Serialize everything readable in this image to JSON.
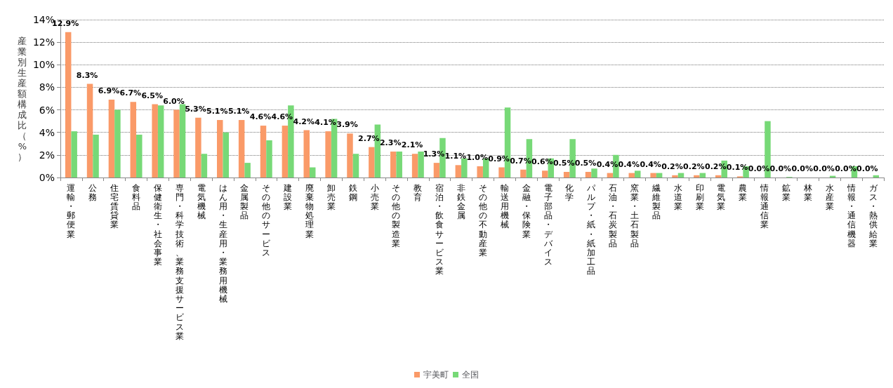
{
  "chart_data": {
    "type": "bar",
    "ylabel": "産業別生産額構成比（%）",
    "categories": [
      "運輸・郵便業",
      "公務",
      "住宅賃貸業",
      "食料品",
      "保健衛生・社会事業",
      "専門・科学技術、業務支援サービス業",
      "電気機械",
      "はん用・生産用・業務用機械",
      "金属製品",
      "その他のサービス",
      "建設業",
      "廃棄物処理業",
      "卸売業",
      "鉄鋼",
      "小売業",
      "その他の製造業",
      "教育",
      "宿泊・飲食サービス業",
      "非鉄金属",
      "その他の不動産業",
      "輸送用機械",
      "金融・保険業",
      "電子部品・デバイス",
      "化学",
      "パルプ・紙・紙加工品",
      "石油・石炭製品",
      "窯業・土石製品",
      "繊維製品",
      "水道業",
      "印刷業",
      "電気業",
      "農業",
      "情報通信業",
      "鉱業",
      "林業",
      "水産業",
      "情報・通信機器",
      "ガス・熱供給業"
    ],
    "series": [
      {
        "name": "宇美町",
        "color": "#fa9a68",
        "values": [
          12.9,
          8.3,
          6.9,
          6.7,
          6.5,
          6.0,
          5.3,
          5.1,
          5.1,
          4.6,
          4.6,
          4.2,
          4.1,
          3.9,
          2.7,
          2.3,
          2.1,
          1.3,
          1.1,
          1.0,
          0.9,
          0.7,
          0.6,
          0.5,
          0.5,
          0.4,
          0.4,
          0.4,
          0.2,
          0.2,
          0.2,
          0.1,
          0.0,
          0.0,
          0.0,
          0.0,
          0.0,
          0.0
        ],
        "value_labels": [
          "12.9%",
          "8.3%",
          "6.9%",
          "6.7%",
          "6.5%",
          "6.0%",
          "5.3%",
          "5.1%",
          "5.1%",
          "4.6%",
          "4.6%",
          "4.2%",
          "4.1%",
          "3.9%",
          "2.7%",
          "2.3%",
          "2.1%",
          "1.3%",
          "1.1%",
          "1.0%",
          "0.9%",
          "0.7%",
          "0.6%",
          "0.5%",
          "0.5%",
          "0.4%",
          "0.4%",
          "0.4%",
          "0.2%",
          "0.2%",
          "0.2%",
          "0.1%",
          "0.0%",
          "0.0%",
          "0.0%",
          "0.0%",
          "0.0%",
          "0.0%"
        ]
      },
      {
        "name": "全国",
        "color": "#77d977",
        "values": [
          4.1,
          3.8,
          6.0,
          3.8,
          6.4,
          6.5,
          2.1,
          4.0,
          1.3,
          3.3,
          6.4,
          0.9,
          5.2,
          2.1,
          4.7,
          2.3,
          2.3,
          3.5,
          1.7,
          1.7,
          6.2,
          3.4,
          1.7,
          3.4,
          0.8,
          2.0,
          0.6,
          0.4,
          0.4,
          0.4,
          1.5,
          1.0,
          5.0,
          0.05,
          null,
          0.15,
          1.0,
          0.2
        ]
      }
    ],
    "ylim": [
      0,
      14
    ],
    "yticks": [
      {
        "value": 0,
        "label": "0%"
      },
      {
        "value": 2,
        "label": "2%"
      },
      {
        "value": 4,
        "label": "4%"
      },
      {
        "value": 6,
        "label": "6%"
      },
      {
        "value": 8,
        "label": "8%"
      },
      {
        "value": 10,
        "label": "10%"
      },
      {
        "value": 12,
        "label": "12%"
      },
      {
        "value": 14,
        "label": "14%"
      }
    ],
    "grid": "y",
    "legend": "bottom"
  }
}
